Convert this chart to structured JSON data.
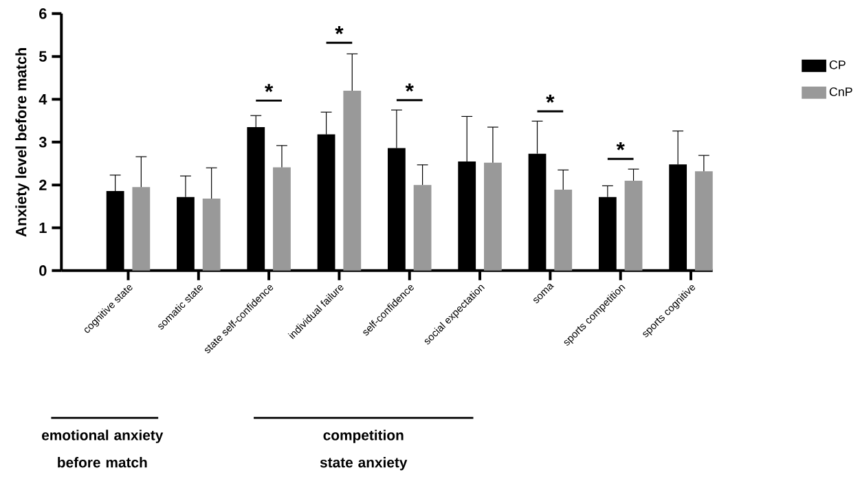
{
  "chart_data": {
    "type": "bar",
    "ylabel": "Anxiety level before match",
    "categories": [
      "cognitive state",
      "somatic state",
      "state self-confidence",
      "individual failure",
      "self-confidence",
      "social expectation",
      "soma",
      "sports competition",
      "sports cognitive"
    ],
    "series": [
      {
        "name": "CP",
        "color": "#000000",
        "values": [
          1.86,
          1.72,
          3.35,
          3.18,
          2.86,
          2.55,
          2.73,
          1.72,
          2.48
        ],
        "errors": [
          [
            1.86,
            2.23
          ],
          [
            1.72,
            2.21
          ],
          [
            3.35,
            3.62
          ],
          [
            3.18,
            3.7
          ],
          [
            2.86,
            3.75
          ],
          [
            2.55,
            3.6
          ],
          [
            2.73,
            3.49
          ],
          [
            1.72,
            1.98
          ],
          [
            2.48,
            3.26
          ]
        ]
      },
      {
        "name": "CnP",
        "color": "#999999",
        "values": [
          1.95,
          1.68,
          2.41,
          4.2,
          2.0,
          2.52,
          1.89,
          2.1,
          2.32
        ],
        "errors": [
          [
            1.95,
            2.66
          ],
          [
            1.68,
            2.4
          ],
          [
            2.41,
            2.92
          ],
          [
            4.2,
            5.06
          ],
          [
            2.0,
            2.47
          ],
          [
            2.52,
            3.35
          ],
          [
            1.89,
            2.35
          ],
          [
            2.1,
            2.37
          ],
          [
            2.32,
            2.69
          ]
        ]
      }
    ],
    "ylim": [
      0,
      6
    ],
    "yticks": [
      0,
      1,
      2,
      3,
      4,
      5,
      6
    ],
    "legend": "right",
    "annotations": [
      "*",
      "*",
      "*",
      "*",
      "*",
      "emotional anxiety before match",
      "competition state anxiety"
    ]
  }
}
